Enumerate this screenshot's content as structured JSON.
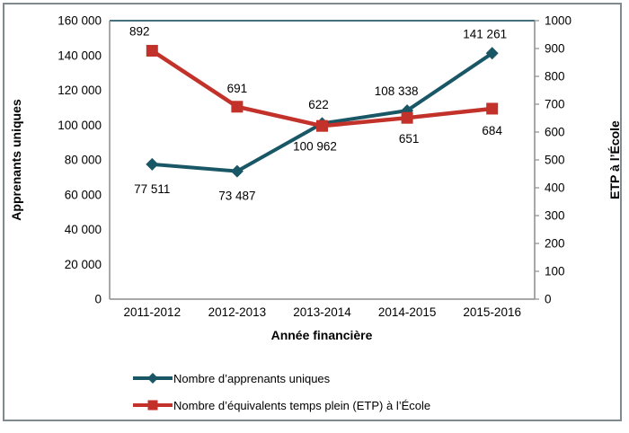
{
  "chart_data": {
    "type": "line",
    "title": "",
    "categories": [
      "2011-2012",
      "2012-2013",
      "2013-2014",
      "2014-2015",
      "2015-2016"
    ],
    "x_title": "Année financière",
    "left_axis": {
      "title": "Apprenants uniques",
      "min": 0,
      "max": 160000,
      "step": 20000,
      "tick_labels_top_to_bottom": [
        "160 000",
        "140 000",
        "120 000",
        "100 000",
        "80 000",
        "60 000",
        "40 000",
        "20 000",
        "0"
      ]
    },
    "right_axis": {
      "title": "ETP à l’École",
      "min": 0,
      "max": 1000,
      "step": 100,
      "tick_labels_top_to_bottom": [
        "1000",
        "900",
        "800",
        "700",
        "600",
        "500",
        "400",
        "300",
        "200",
        "100",
        "0"
      ]
    },
    "series": [
      {
        "name": "Nombre d’apprenants uniques",
        "axis": "left",
        "color": "#1a5766",
        "marker": "diamond",
        "values": [
          77511,
          73487,
          100962,
          108338,
          141261
        ],
        "data_labels": [
          "77 511",
          "73 487",
          "100 962",
          "108 338",
          "141 261"
        ],
        "label_offsets": [
          [
            0,
            32
          ],
          [
            0,
            32
          ],
          [
            -8,
            30
          ],
          [
            -12,
            -17
          ],
          [
            -8,
            -17
          ]
        ]
      },
      {
        "name": "Nombre d’équivalents temps plein (ETP) à l’École",
        "axis": "right",
        "color": "#c2312a",
        "marker": "square",
        "values": [
          892,
          691,
          622,
          651,
          684
        ],
        "data_labels": [
          "892",
          "691",
          "622",
          "651",
          "684"
        ],
        "label_offsets": [
          [
            -14,
            -17
          ],
          [
            0,
            -16
          ],
          [
            -4,
            -19
          ],
          [
            2,
            28
          ],
          [
            0,
            29
          ]
        ]
      }
    ],
    "legend_position": "bottom",
    "grid": false,
    "colors": {
      "axis_line": "#8c8c8c",
      "plot_top_border": "#44707d",
      "frame_border": "#7f8a8f",
      "text": "#000000"
    }
  }
}
